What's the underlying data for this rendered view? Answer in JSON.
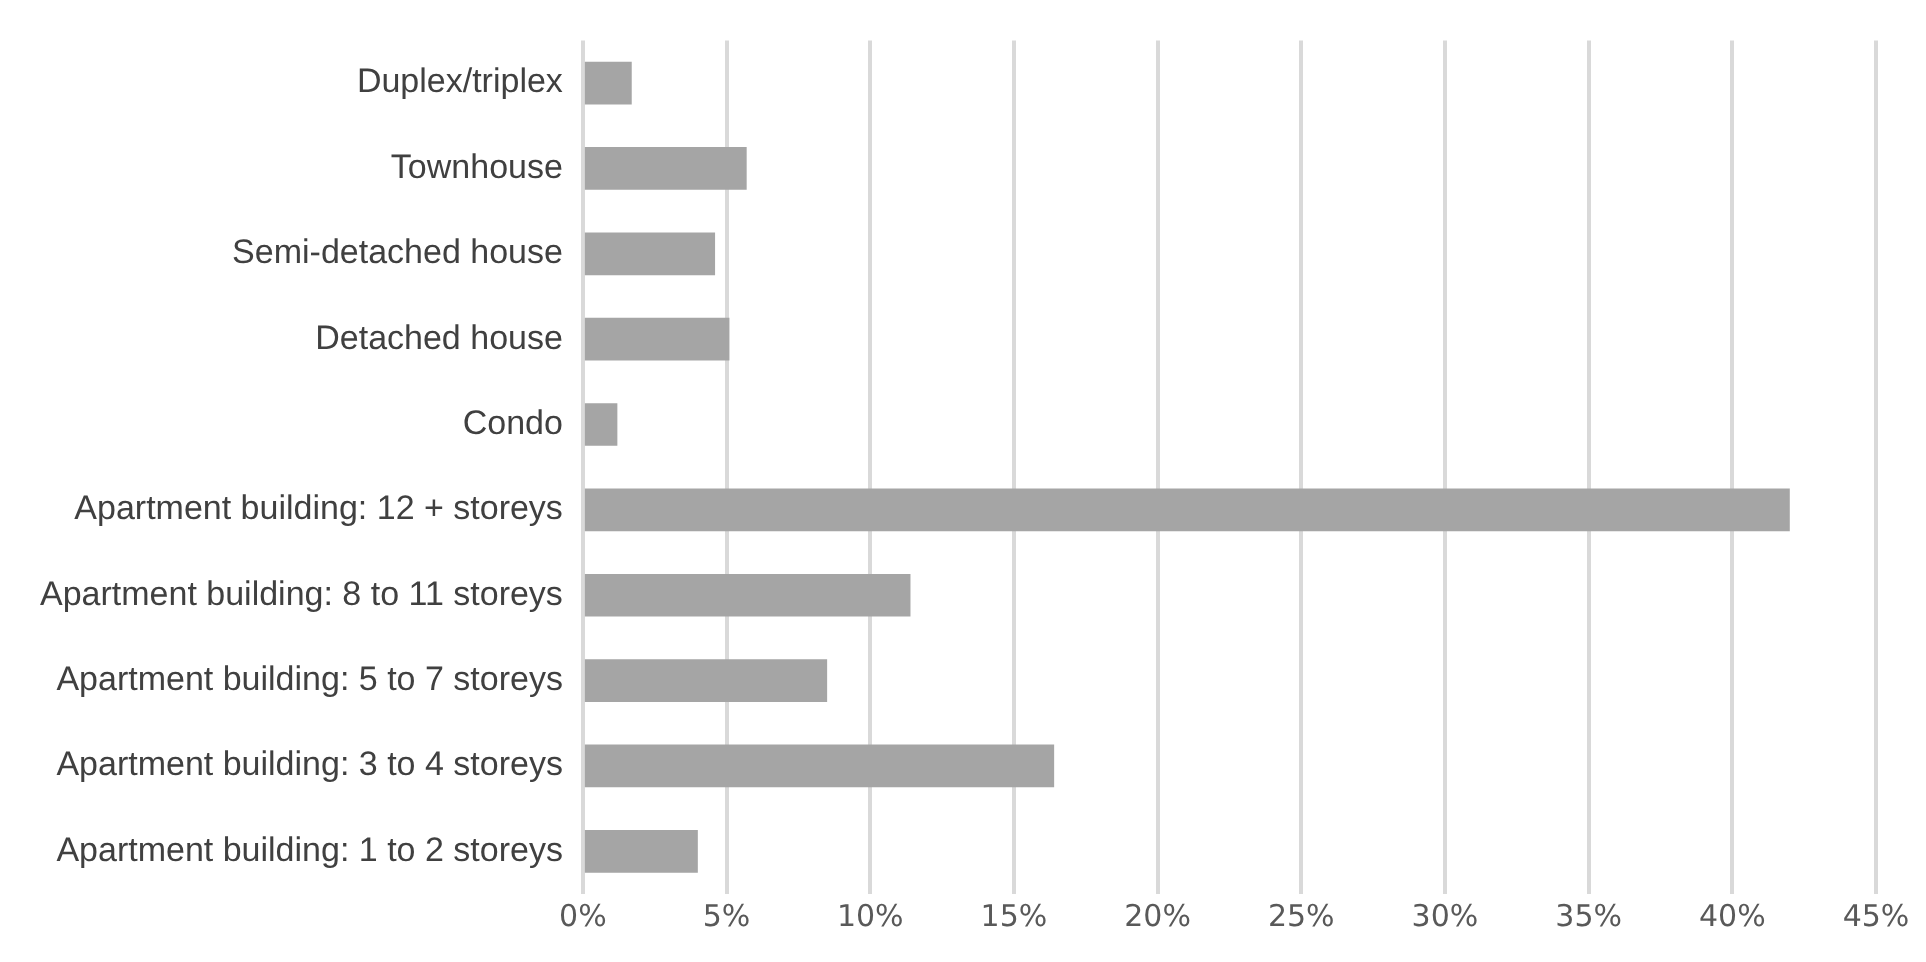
{
  "chart_data": {
    "type": "bar",
    "orientation": "horizontal",
    "categories": [
      "Duplex/triplex",
      "Townhouse",
      "Semi-detached house",
      "Detached house",
      "Condo",
      "Apartment building: 12 + storeys",
      "Apartment building: 8 to 11 storeys",
      "Apartment building: 5 to 7 storeys",
      "Apartment building: 3 to 4 storeys",
      "Apartment building: 1 to 2 storeys"
    ],
    "values": [
      1.7,
      5.7,
      4.6,
      5.1,
      1.2,
      42.0,
      11.4,
      8.5,
      16.4,
      4.0
    ],
    "color": "#a5a5a5",
    "xlim": [
      0,
      45
    ],
    "xticks": [
      {
        "value": 0,
        "label": "0%"
      },
      {
        "value": 5,
        "label": "5%"
      },
      {
        "value": 10,
        "label": "10%"
      },
      {
        "value": 15,
        "label": "15%"
      },
      {
        "value": 20,
        "label": "20%"
      },
      {
        "value": 25,
        "label": "25%"
      },
      {
        "value": 30,
        "label": "30%"
      },
      {
        "value": 35,
        "label": "35%"
      },
      {
        "value": 40,
        "label": "40%"
      },
      {
        "value": 45,
        "label": "45%"
      }
    ],
    "grid": "x",
    "legend": false
  }
}
